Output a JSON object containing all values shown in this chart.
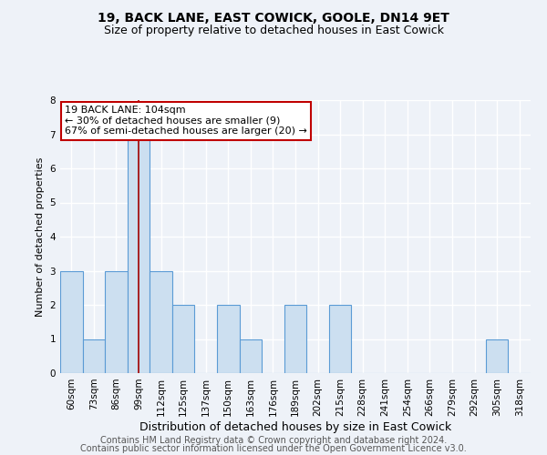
{
  "title": "19, BACK LANE, EAST COWICK, GOOLE, DN14 9ET",
  "subtitle": "Size of property relative to detached houses in East Cowick",
  "xlabel": "Distribution of detached houses by size in East Cowick",
  "ylabel": "Number of detached properties",
  "categories": [
    "60sqm",
    "73sqm",
    "86sqm",
    "99sqm",
    "112sqm",
    "125sqm",
    "137sqm",
    "150sqm",
    "163sqm",
    "176sqm",
    "189sqm",
    "202sqm",
    "215sqm",
    "228sqm",
    "241sqm",
    "254sqm",
    "266sqm",
    "279sqm",
    "292sqm",
    "305sqm",
    "318sqm"
  ],
  "values": [
    3,
    1,
    3,
    7,
    3,
    2,
    0,
    2,
    1,
    0,
    2,
    0,
    2,
    0,
    0,
    0,
    0,
    0,
    0,
    1,
    0
  ],
  "bar_color": "#ccdff0",
  "bar_edge_color": "#5b9bd5",
  "vline_x": 3,
  "vline_color": "#a00000",
  "annotation_text": "19 BACK LANE: 104sqm\n← 30% of detached houses are smaller (9)\n67% of semi-detached houses are larger (20) →",
  "annotation_box_color": "#ffffff",
  "annotation_box_edge": "#c00000",
  "ylim": [
    0,
    8
  ],
  "yticks": [
    0,
    1,
    2,
    3,
    4,
    5,
    6,
    7,
    8
  ],
  "footer1": "Contains HM Land Registry data © Crown copyright and database right 2024.",
  "footer2": "Contains public sector information licensed under the Open Government Licence v3.0.",
  "background_color": "#eef2f8",
  "grid_color": "#ffffff",
  "title_fontsize": 10,
  "subtitle_fontsize": 9,
  "xlabel_fontsize": 9,
  "ylabel_fontsize": 8,
  "tick_fontsize": 7.5,
  "annotation_fontsize": 8,
  "footer_fontsize": 7
}
